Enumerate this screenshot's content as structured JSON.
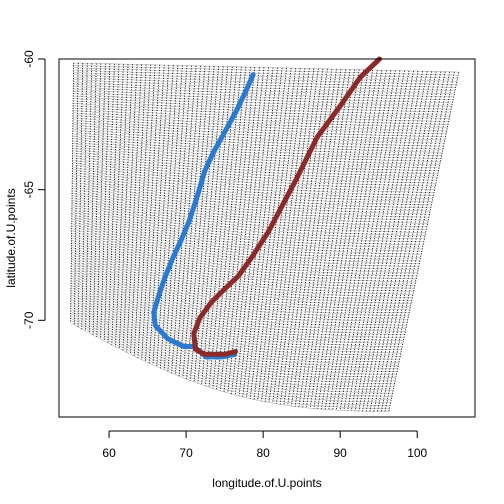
{
  "chart_data": {
    "type": "scatter",
    "title": "",
    "xlabel": "longitude.of.U.points",
    "ylabel": "latitude.of.U.points",
    "xlim": [
      53.5,
      107.5
    ],
    "ylim": [
      -73.7,
      -60.0
    ],
    "xticks": [
      60,
      70,
      80,
      90,
      100
    ],
    "yticks": [
      -60,
      -65,
      -70
    ],
    "grid": false,
    "legend": "none",
    "mesh": {
      "name": "",
      "color": "#000000",
      "corners": {
        "top_left": [
          55.4,
          -60.15
        ],
        "top_right": [
          105.4,
          -60.5
        ],
        "bottom_left": [
          55.0,
          -70.1
        ],
        "bottom_right": [
          96.3,
          -73.5
        ]
      },
      "bottom_edge_sag_deg": 1.0,
      "columns": 85,
      "rows": 110
    },
    "series": [
      {
        "color": "#2a7ad2",
        "points": [
          [
            78.7,
            -60.6
          ],
          [
            77.8,
            -61.2
          ],
          [
            76.5,
            -62.0
          ],
          [
            75.0,
            -62.8
          ],
          [
            73.5,
            -63.6
          ],
          [
            72.4,
            -64.3
          ],
          [
            71.4,
            -65.3
          ],
          [
            70.4,
            -66.2
          ],
          [
            69.4,
            -66.9
          ],
          [
            68.3,
            -67.6
          ],
          [
            67.2,
            -68.4
          ],
          [
            66.4,
            -69.1
          ],
          [
            65.8,
            -69.7
          ],
          [
            66.0,
            -70.2
          ],
          [
            67.6,
            -70.7
          ],
          [
            69.7,
            -71.0
          ],
          [
            71.0,
            -71.0
          ],
          [
            72.6,
            -71.4
          ],
          [
            74.6,
            -71.4
          ],
          [
            76.3,
            -71.3
          ]
        ]
      },
      {
        "color": "#8b2a2a",
        "points": [
          [
            95.1,
            -60.0
          ],
          [
            92.6,
            -60.7
          ],
          [
            90.0,
            -61.8
          ],
          [
            87.0,
            -63.0
          ],
          [
            84.3,
            -64.6
          ],
          [
            82.5,
            -65.6
          ],
          [
            80.7,
            -66.6
          ],
          [
            78.5,
            -67.6
          ],
          [
            76.8,
            -68.3
          ],
          [
            75.0,
            -68.8
          ],
          [
            73.3,
            -69.3
          ],
          [
            71.8,
            -69.9
          ],
          [
            71.0,
            -70.5
          ],
          [
            71.2,
            -71.1
          ],
          [
            72.4,
            -71.3
          ],
          [
            73.3,
            -71.3
          ],
          [
            75.0,
            -71.3
          ],
          [
            76.4,
            -71.2
          ]
        ]
      }
    ]
  }
}
